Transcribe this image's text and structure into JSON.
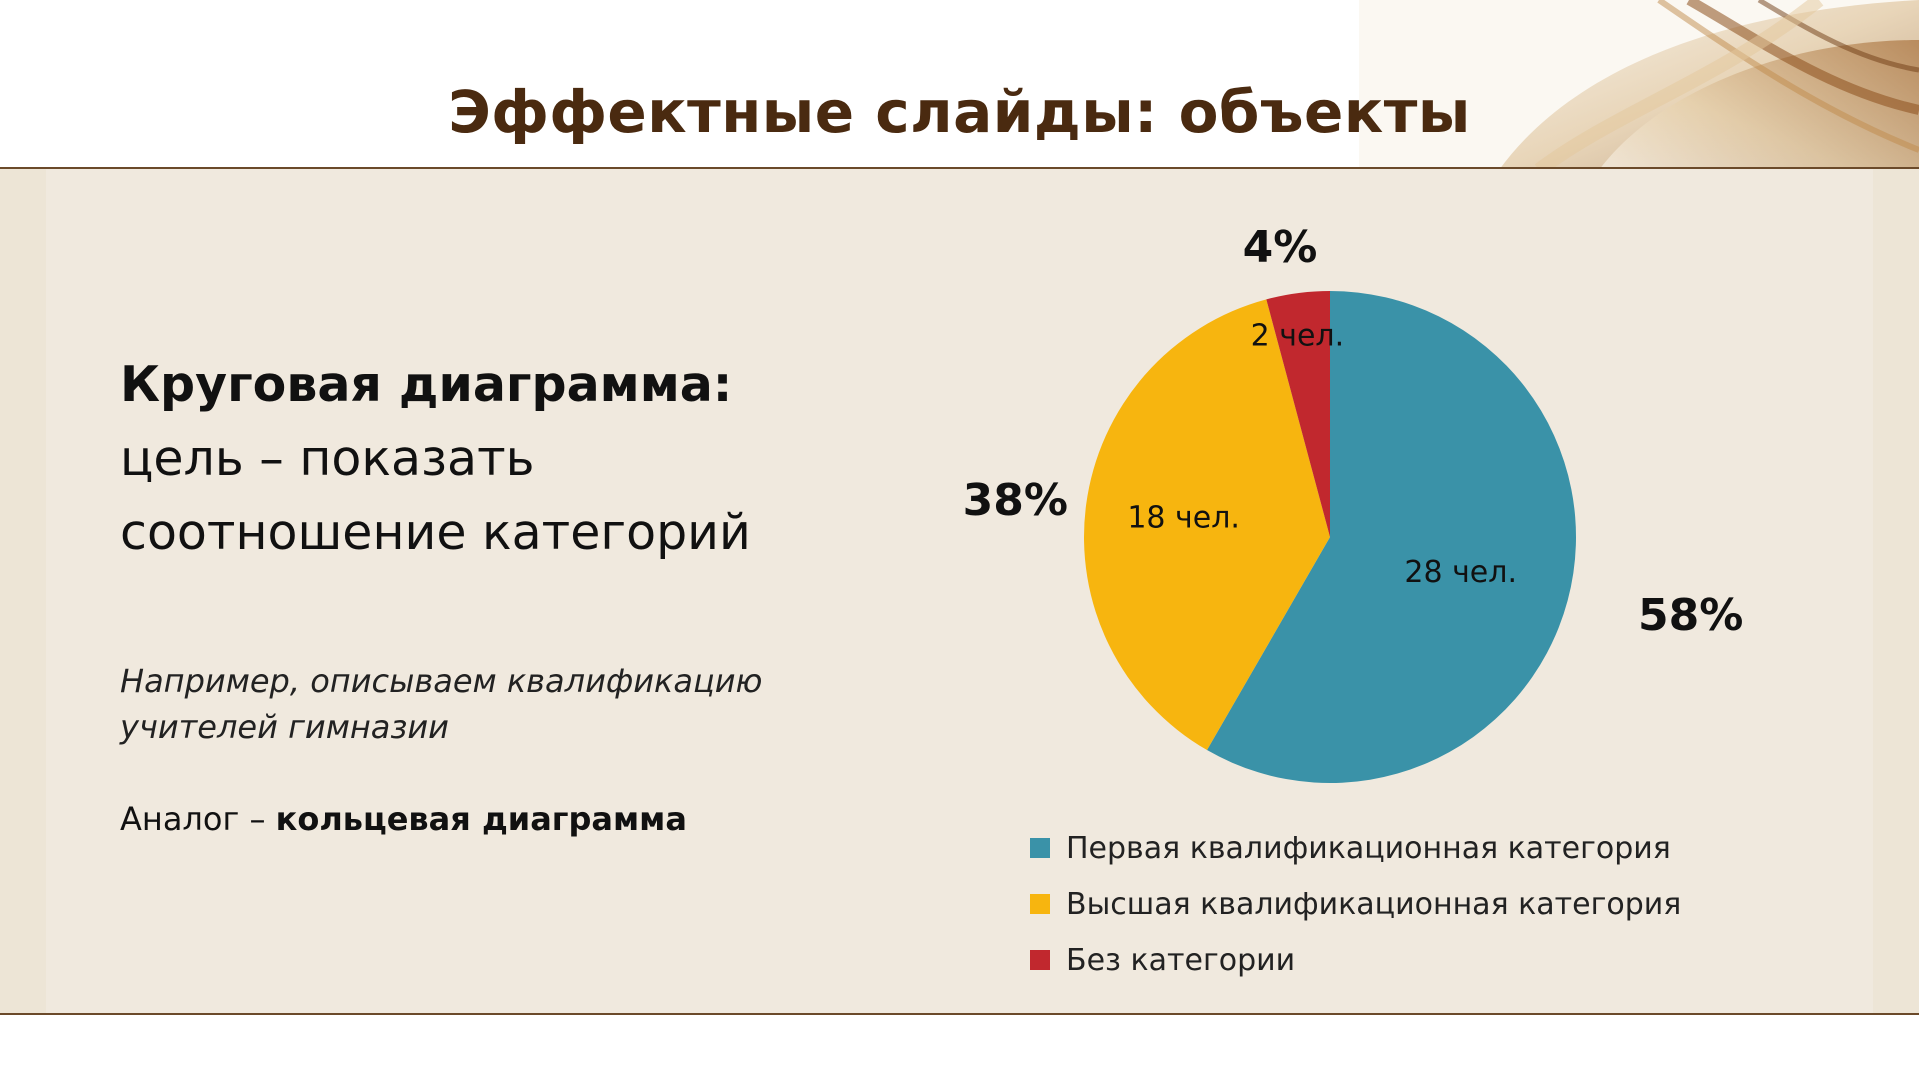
{
  "slide": {
    "title": "Эффектные слайды: объекты"
  },
  "left": {
    "heading_bold": "Круговая диаграмма:",
    "heading_line2": "цель – показать",
    "heading_line3": "соотношение категорий",
    "example_line1": "Например, описываем квалификацию",
    "example_line2": "учителей гимназии",
    "analog_prefix": "Аналог – ",
    "analog_bold": "кольцевая диаграмма"
  },
  "colors": {
    "teal": "#3a92a8",
    "amber": "#f7b50f",
    "red": "#c1282e",
    "title": "#4a2a10",
    "panel": "#ede5d6"
  },
  "chart_data": {
    "type": "pie",
    "title": "",
    "legend_position": "bottom",
    "slices": [
      {
        "name": "Первая квалификационная категория",
        "value": 28,
        "label": "28 чел.",
        "percent_label": "58%",
        "color": "#3a92a8"
      },
      {
        "name": "Высшая квалификационная категория",
        "value": 18,
        "label": "18 чел.",
        "percent_label": "38%",
        "color": "#f7b50f"
      },
      {
        "name": "Без категории",
        "value": 2,
        "label": "2 чел.",
        "percent_label": "4%",
        "color": "#c1282e"
      }
    ]
  }
}
